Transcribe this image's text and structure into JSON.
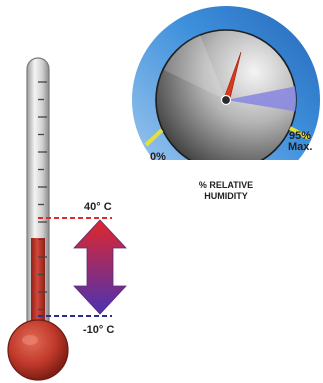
{
  "thermometer": {
    "high_label": "40° C",
    "low_label": "-10° C",
    "colors": {
      "tube_glass": "#d9d9d9",
      "mercury": "#c0392b",
      "bulb": "#c0392b",
      "high_line": "#d9302a",
      "low_line": "#2b2f8f"
    }
  },
  "range_arrow": {
    "icon": "double-headed-vertical-arrow",
    "colors": {
      "top": "#e0262c",
      "bottom": "#4a33b3"
    }
  },
  "humidity_gauge": {
    "min_label": "0%",
    "max_label": "95%",
    "max_suffix": "Max.",
    "caption_line1": "% RELATIVE",
    "caption_line2": "HUMIDITY",
    "needle_reading": 65,
    "colors": {
      "ring": "#3d8fdc",
      "dial_light": "#f2f2f2",
      "dial_dark": "#444444",
      "scale_band": "#8a8ae0",
      "marker": "#e6df3a",
      "needle": "#d93a1c"
    }
  }
}
